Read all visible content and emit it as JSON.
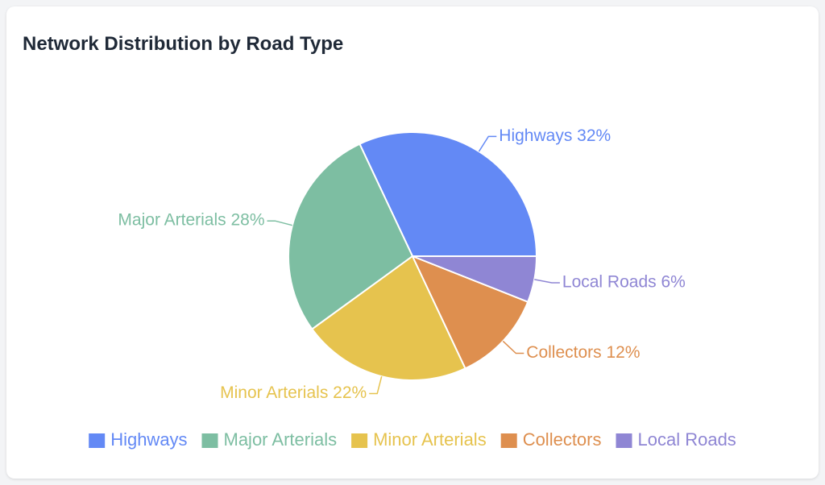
{
  "chart_data": {
    "type": "pie",
    "title": "Network Distribution by Road Type",
    "categories": [
      "Highways",
      "Major Arterials",
      "Minor Arterials",
      "Collectors",
      "Local Roads"
    ],
    "values": [
      32,
      28,
      22,
      12,
      6
    ],
    "slice_labels": [
      "Highways 32%",
      "Major Arterials 28%",
      "Minor Arterials 22%",
      "Collectors 12%",
      "Local Roads 6%"
    ],
    "colors": [
      "#6389f5",
      "#7dbea2",
      "#e6c34e",
      "#de8f4f",
      "#8f86d4"
    ],
    "legend": {
      "position": "bottom",
      "entries": [
        "Highways",
        "Major Arterials",
        "Minor Arterials",
        "Collectors",
        "Local Roads"
      ]
    }
  }
}
